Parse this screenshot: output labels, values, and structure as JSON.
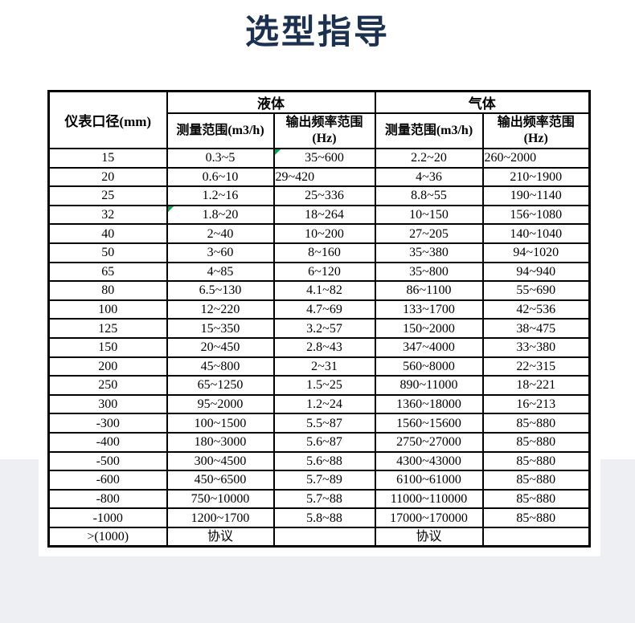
{
  "page": {
    "title": "选型指导",
    "title_color": "#1c3150",
    "background_color": "#edeff3",
    "card_color": "#ffffff",
    "marker_color": "#00a651"
  },
  "table": {
    "corner_header": "仪表口径(mm)",
    "groups": [
      {
        "label": "液体"
      },
      {
        "label": "气体"
      }
    ],
    "sub_headers": [
      "测量范围(m3/h)",
      "输出频率范围\n(Hz)",
      "测量范围(m3/h)",
      "输出频率范围\n(Hz)"
    ],
    "rows": [
      [
        "15",
        "0.3~5",
        "35~600",
        "2.2~20",
        "260~2000"
      ],
      [
        "20",
        "0.6~10",
        "29~420",
        "4~36",
        "210~1900"
      ],
      [
        "25",
        "1.2~16",
        "25~336",
        "8.8~55",
        "190~1140"
      ],
      [
        "32",
        "1.8~20",
        "18~264",
        "10~150",
        "156~1080"
      ],
      [
        "40",
        "2~40",
        "10~200",
        "27~205",
        "140~1040"
      ],
      [
        "50",
        "3~60",
        "8~160",
        "35~380",
        "94~1020"
      ],
      [
        "65",
        "4~85",
        "6~120",
        "35~800",
        "94~940"
      ],
      [
        "80",
        "6.5~130",
        "4.1~82",
        "86~1100",
        "55~690"
      ],
      [
        "100",
        "12~220",
        "4.7~69",
        "133~1700",
        "42~536"
      ],
      [
        "125",
        "15~350",
        "3.2~57",
        "150~2000",
        "38~475"
      ],
      [
        "150",
        "20~450",
        "2.8~43",
        "347~4000",
        "33~380"
      ],
      [
        "200",
        "45~800",
        "2~31",
        "560~8000",
        "22~315"
      ],
      [
        "250",
        "65~1250",
        "1.5~25",
        "890~11000",
        "18~221"
      ],
      [
        "300",
        "95~2000",
        "1.2~24",
        "1360~18000",
        "16~213"
      ],
      [
        "-300",
        "100~1500",
        "5.5~87",
        "1560~15600",
        "85~880"
      ],
      [
        "-400",
        "180~3000",
        "5.6~87",
        "2750~27000",
        "85~880"
      ],
      [
        "-500",
        "300~4500",
        "5.6~88",
        "4300~43000",
        "85~880"
      ],
      [
        "-600",
        "450~6500",
        "5.7~89",
        "6100~61000",
        "85~880"
      ],
      [
        "-800",
        "750~10000",
        "5.7~88",
        "11000~110000",
        "85~880"
      ],
      [
        "-1000",
        "1200~1700",
        "5.8~88",
        "17000~170000",
        "85~880"
      ],
      [
        ">(1000)",
        "协议",
        "",
        "协议",
        ""
      ]
    ],
    "left_aligned_cells": [
      [
        0,
        4
      ],
      [
        1,
        2
      ]
    ],
    "green_marker_cells": [
      [
        0,
        2
      ],
      [
        3,
        1
      ]
    ]
  }
}
